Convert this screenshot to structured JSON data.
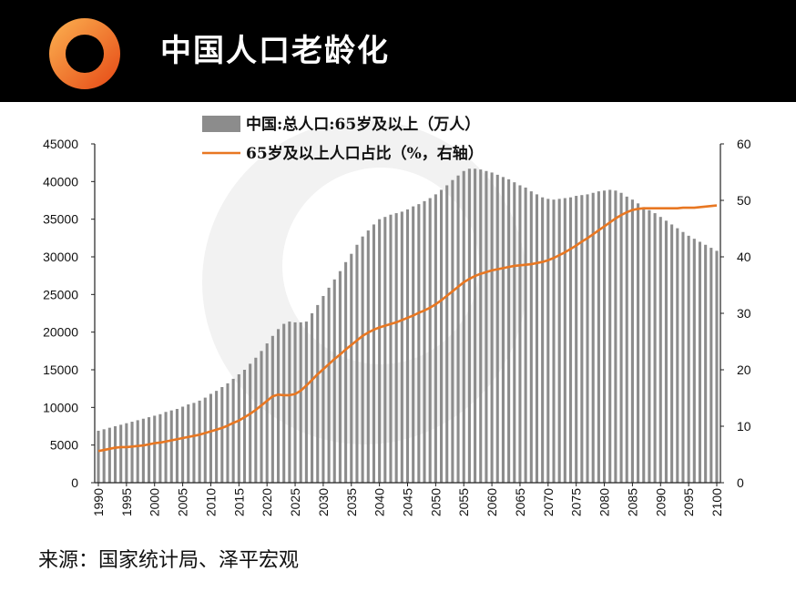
{
  "header": {
    "title": "中国人口老龄化",
    "logo_icon": "orange-ring-logo-icon",
    "logo_color": "#F47A20"
  },
  "footer": {
    "source": "来源：国家统计局、泽平宏观"
  },
  "chart_data": {
    "type": "bar+line",
    "title": "",
    "xlabel": "",
    "ylabel_left": "",
    "ylabel_right": "",
    "x_tick_labels": [
      "1990",
      "1995",
      "2000",
      "2005",
      "2010",
      "2015",
      "2020",
      "2025",
      "2030",
      "2035",
      "2040",
      "2045",
      "2050",
      "2055",
      "2060",
      "2065",
      "2070",
      "2075",
      "2080",
      "2085",
      "2090",
      "2095",
      "2100"
    ],
    "y_left": {
      "ticks": [
        0,
        5000,
        10000,
        15000,
        20000,
        25000,
        30000,
        35000,
        40000,
        45000
      ],
      "lim": [
        0,
        45000
      ]
    },
    "y_right": {
      "ticks": [
        0,
        10,
        20,
        30,
        40,
        50,
        60
      ],
      "lim": [
        0,
        60
      ]
    },
    "legend": {
      "placement": "top-center"
    },
    "grid": false,
    "colors": {
      "bars": "#8C8C8C",
      "line": "#E87722"
    },
    "years": [
      1990,
      1991,
      1992,
      1993,
      1994,
      1995,
      1996,
      1997,
      1998,
      1999,
      2000,
      2001,
      2002,
      2003,
      2004,
      2005,
      2006,
      2007,
      2008,
      2009,
      2010,
      2011,
      2012,
      2013,
      2014,
      2015,
      2016,
      2017,
      2018,
      2019,
      2020,
      2021,
      2022,
      2023,
      2024,
      2025,
      2026,
      2027,
      2028,
      2029,
      2030,
      2031,
      2032,
      2033,
      2034,
      2035,
      2036,
      2037,
      2038,
      2039,
      2040,
      2041,
      2042,
      2043,
      2044,
      2045,
      2046,
      2047,
      2048,
      2049,
      2050,
      2051,
      2052,
      2053,
      2054,
      2055,
      2056,
      2057,
      2058,
      2059,
      2060,
      2061,
      2062,
      2063,
      2064,
      2065,
      2066,
      2067,
      2068,
      2069,
      2070,
      2071,
      2072,
      2073,
      2074,
      2075,
      2076,
      2077,
      2078,
      2079,
      2080,
      2081,
      2082,
      2083,
      2084,
      2085,
      2086,
      2087,
      2088,
      2089,
      2090,
      2091,
      2092,
      2093,
      2094,
      2095,
      2096,
      2097,
      2098,
      2099,
      2100
    ],
    "series": [
      {
        "name": "中国:总人口:65岁及以上（万人）",
        "type": "bar",
        "axis": "left",
        "values": [
          6900,
          7100,
          7300,
          7500,
          7700,
          7900,
          8100,
          8300,
          8500,
          8700,
          8900,
          9100,
          9400,
          9600,
          9800,
          10100,
          10400,
          10600,
          10900,
          11300,
          11800,
          12200,
          12700,
          13200,
          13800,
          14400,
          15000,
          15800,
          16600,
          17500,
          18500,
          19500,
          20400,
          21100,
          21400,
          21300,
          21300,
          21400,
          22500,
          23600,
          24800,
          25900,
          27000,
          28100,
          29300,
          30400,
          31600,
          32700,
          33500,
          34300,
          35000,
          35300,
          35600,
          35800,
          36000,
          36300,
          36700,
          37000,
          37400,
          37800,
          38300,
          38900,
          39500,
          40200,
          40800,
          41400,
          41700,
          41700,
          41600,
          41400,
          41200,
          40900,
          40600,
          40300,
          39900,
          39500,
          39200,
          38700,
          38300,
          37900,
          37700,
          37600,
          37700,
          37800,
          37900,
          38100,
          38200,
          38300,
          38500,
          38700,
          38800,
          38900,
          38800,
          38500,
          38000,
          37600,
          37100,
          36600,
          36200,
          35800,
          35300,
          34800,
          34300,
          33800,
          33300,
          32800,
          32400,
          32000,
          31600,
          31200,
          30800
        ]
      },
      {
        "name": "65岁及以上人口占比（%，右轴）",
        "type": "line",
        "axis": "right",
        "values": [
          5.6,
          5.8,
          6.0,
          6.2,
          6.3,
          6.3,
          6.4,
          6.5,
          6.6,
          6.8,
          7.0,
          7.1,
          7.3,
          7.5,
          7.7,
          7.9,
          8.1,
          8.3,
          8.5,
          8.8,
          9.1,
          9.4,
          9.7,
          10.1,
          10.6,
          11.0,
          11.6,
          12.2,
          12.9,
          13.7,
          14.5,
          15.3,
          15.6,
          15.5,
          15.5,
          15.7,
          16.3,
          17.2,
          18.2,
          19.2,
          20.1,
          21.0,
          21.9,
          22.7,
          23.6,
          24.4,
          25.2,
          26.0,
          26.6,
          27.1,
          27.5,
          27.8,
          28.1,
          28.4,
          28.8,
          29.2,
          29.6,
          30.1,
          30.5,
          31.0,
          31.6,
          32.3,
          33.1,
          33.9,
          34.7,
          35.5,
          36.1,
          36.6,
          37.0,
          37.3,
          37.6,
          37.8,
          38.0,
          38.2,
          38.4,
          38.5,
          38.6,
          38.7,
          38.9,
          39.1,
          39.4,
          39.8,
          40.3,
          40.8,
          41.4,
          42.0,
          42.7,
          43.3,
          44.0,
          44.7,
          45.4,
          46.1,
          46.8,
          47.4,
          47.9,
          48.3,
          48.5,
          48.6,
          48.6,
          48.6,
          48.6,
          48.6,
          48.6,
          48.6,
          48.7,
          48.7,
          48.7,
          48.8,
          48.9,
          49.0,
          49.1
        ]
      }
    ]
  }
}
